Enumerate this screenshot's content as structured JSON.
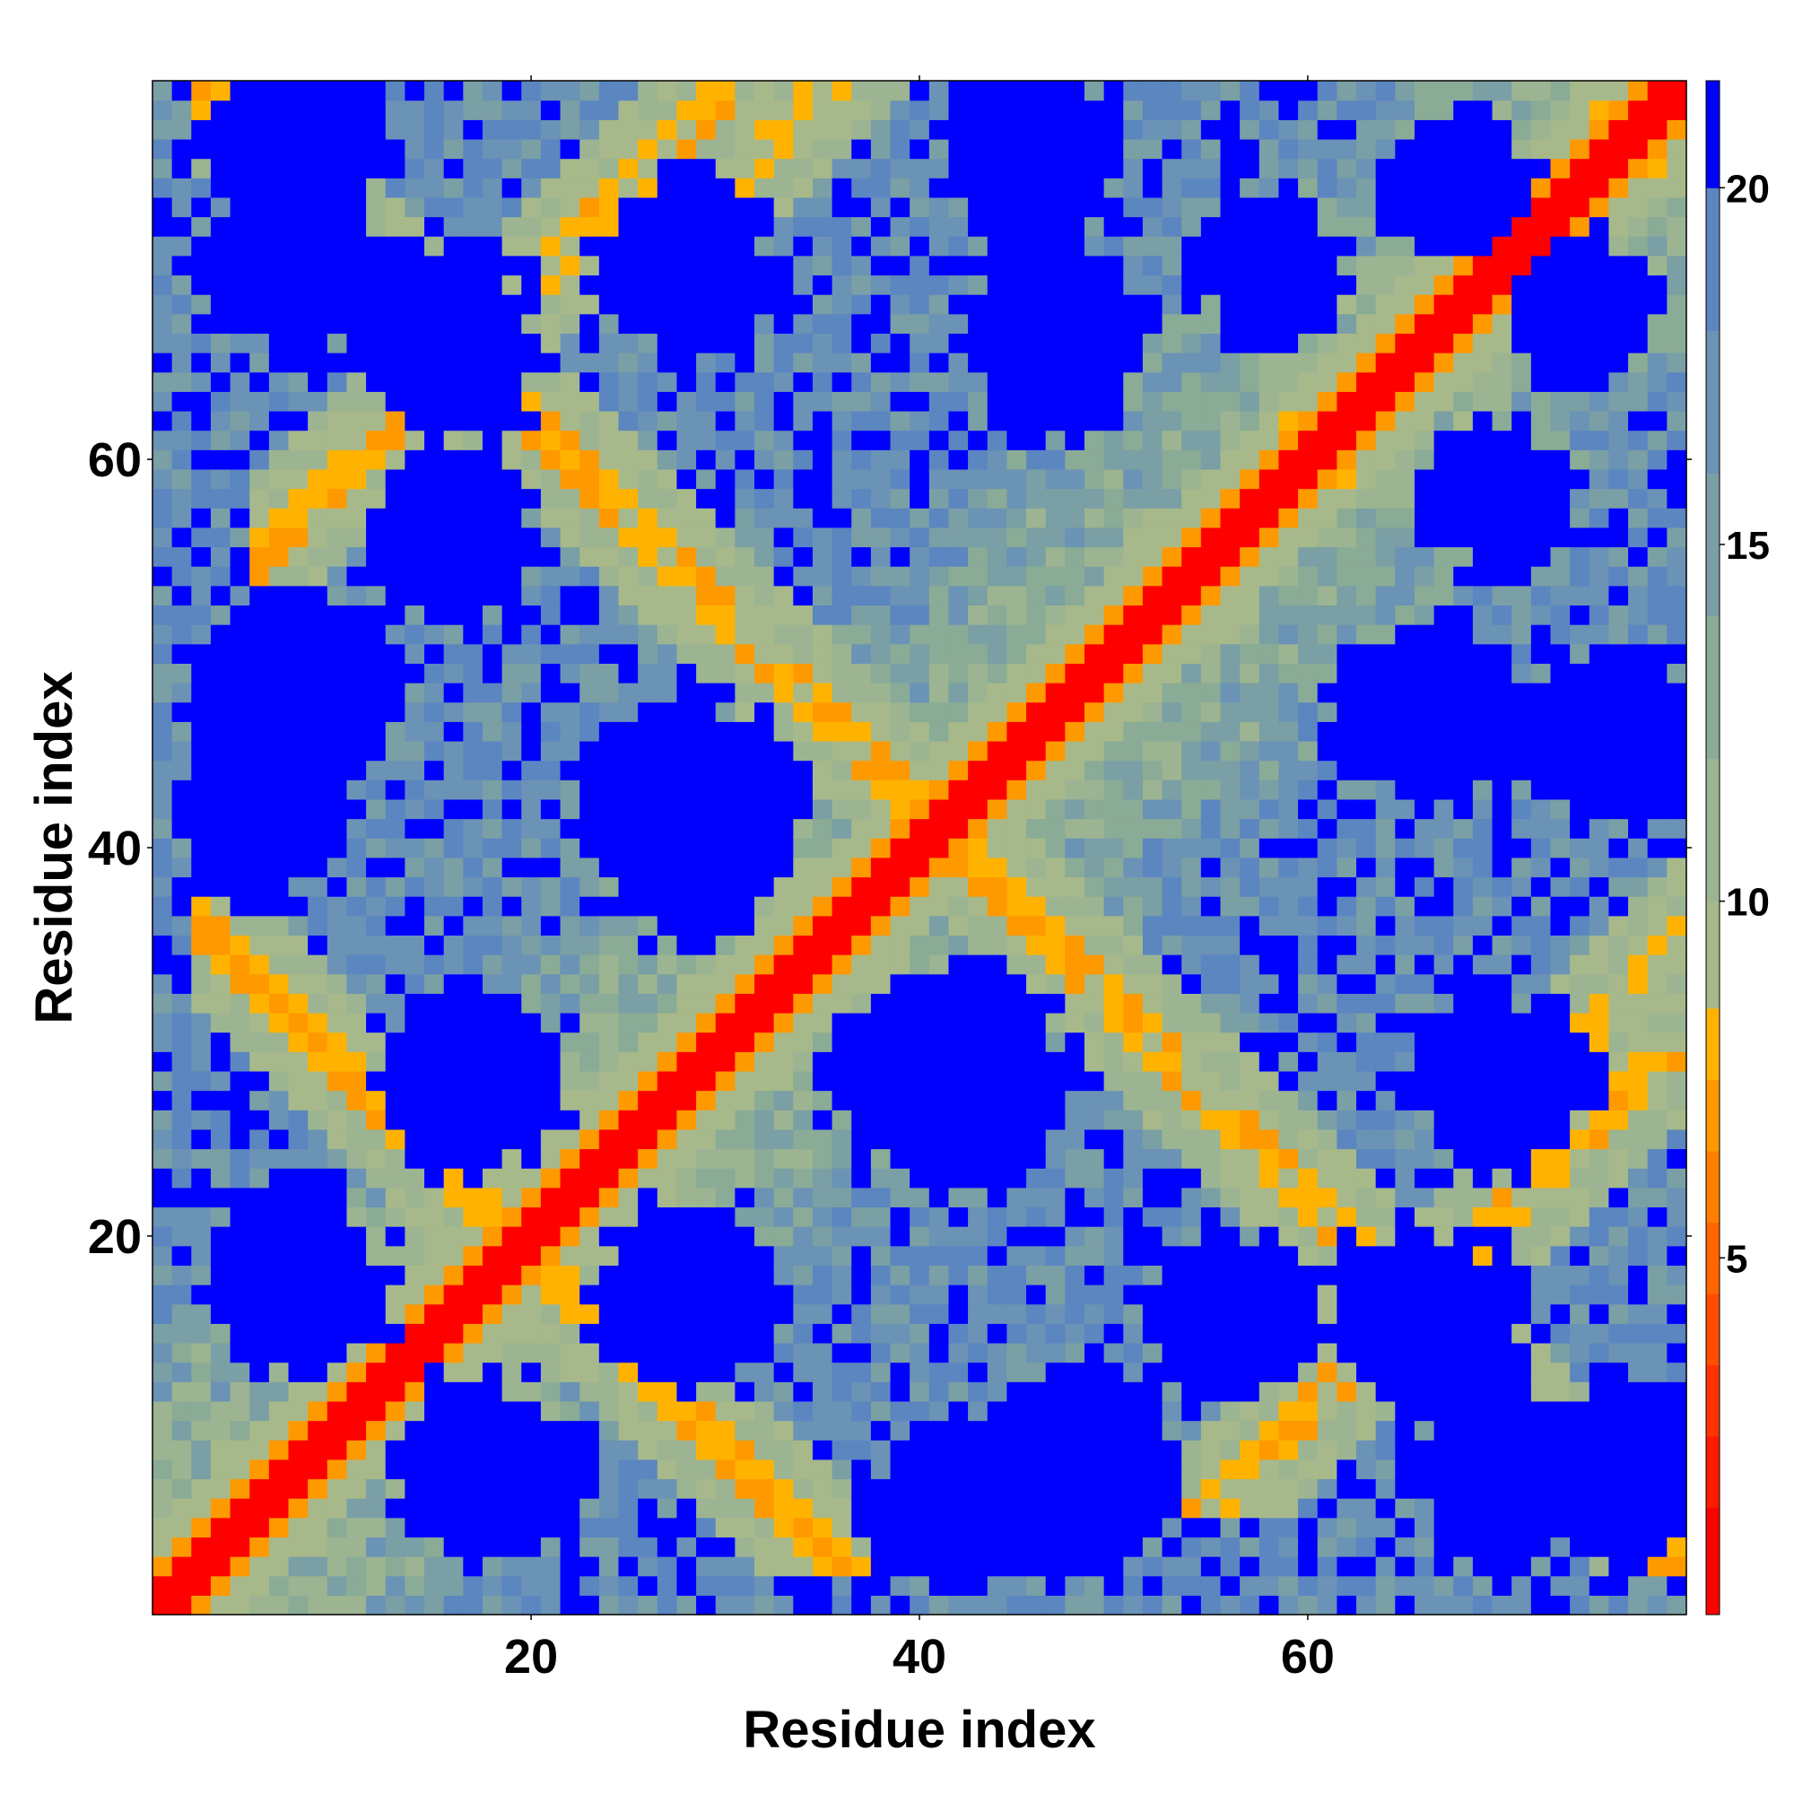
{
  "chart_data": {
    "type": "heatmap",
    "title": "",
    "xlabel": "Residue index",
    "ylabel": "Residue index",
    "grid_size": 79,
    "xlim": [
      1,
      79
    ],
    "ylim": [
      1,
      79
    ],
    "x_ticks": [
      {
        "value": 20,
        "label": "20"
      },
      {
        "value": 40,
        "label": "40"
      },
      {
        "value": 60,
        "label": "60"
      }
    ],
    "y_ticks": [
      {
        "value": 20,
        "label": "20"
      },
      {
        "value": 40,
        "label": "40"
      },
      {
        "value": 60,
        "label": "60"
      }
    ],
    "colorbar": {
      "range": [
        0,
        21.5
      ],
      "ticks": [
        {
          "value": 5,
          "label": "5"
        },
        {
          "value": 10,
          "label": "10"
        },
        {
          "value": 15,
          "label": "15"
        },
        {
          "value": 20,
          "label": "20"
        }
      ],
      "bands": [
        {
          "from": 0,
          "to": 1.5,
          "color": "#ff0000"
        },
        {
          "from": 1.5,
          "to": 2.5,
          "color": "#ff1a00"
        },
        {
          "from": 2.5,
          "to": 3.5,
          "color": "#ff3300"
        },
        {
          "from": 3.5,
          "to": 4.5,
          "color": "#ff4d00"
        },
        {
          "from": 4.5,
          "to": 5.5,
          "color": "#ff6600"
        },
        {
          "from": 5.5,
          "to": 6.5,
          "color": "#ff8000"
        },
        {
          "from": 6.5,
          "to": 7.5,
          "color": "#ff9900"
        },
        {
          "from": 7.5,
          "to": 8.5,
          "color": "#ffb300"
        },
        {
          "from": 8.5,
          "to": 10,
          "color": "#a7b98a"
        },
        {
          "from": 10,
          "to": 12,
          "color": "#9cb491"
        },
        {
          "from": 12,
          "to": 14,
          "color": "#8aab96"
        },
        {
          "from": 14,
          "to": 16,
          "color": "#7a9fa5"
        },
        {
          "from": 16,
          "to": 18,
          "color": "#6a93b5"
        },
        {
          "from": 18,
          "to": 20,
          "color": "#5b86c0"
        },
        {
          "from": 20,
          "to": 21.5,
          "color": "#0000ff"
        }
      ]
    },
    "matrix_model": {
      "symmetric": true,
      "description_of_structure": "Pairwise residue distance map: main diagonal near 0; antidiagonal contact bands near i+j≈39 (i=2..30) and i+j≈82 (i=2..77); parallel band j−i≈50 region; saturated blue (>=20) far-contact regions",
      "diagonal": {
        "width": 1.5,
        "value": 1
      },
      "bands": [
        {
          "type": "anti",
          "sum": 39,
          "from": 3,
          "to": 28,
          "width": 1.3,
          "value": 6.5
        },
        {
          "type": "anti",
          "sum": 82,
          "from": 3,
          "to": 79,
          "width": 1.4,
          "value": 6.8
        },
        {
          "type": "par",
          "offset": 49,
          "from": 6,
          "to": 30,
          "width": 1.2,
          "value": 7
        },
        {
          "type": "par",
          "offset": 44,
          "from": 30,
          "to": 46,
          "width": 1.2,
          "value": 7.4
        }
      ],
      "blobs": [
        {
          "i": 8,
          "j": 70,
          "r": 5,
          "value": 21
        },
        {
          "i": 8,
          "j": 48,
          "r": 6,
          "value": 21
        },
        {
          "i": 8,
          "j": 18,
          "r": 5,
          "value": 21
        },
        {
          "i": 18,
          "j": 8,
          "r": 4,
          "value": 21
        },
        {
          "i": 28,
          "j": 17,
          "r": 5,
          "value": 21
        },
        {
          "i": 28,
          "j": 42,
          "r": 6,
          "value": 21
        },
        {
          "i": 16,
          "j": 68,
          "r": 4,
          "value": 21
        },
        {
          "i": 28,
          "j": 70,
          "r": 5,
          "value": 21
        },
        {
          "i": 40,
          "j": 28,
          "r": 5,
          "value": 21
        },
        {
          "i": 42,
          "j": 6,
          "r": 5,
          "value": 21
        },
        {
          "i": 46,
          "j": 68,
          "r": 4,
          "value": 21
        },
        {
          "i": 56,
          "j": 16,
          "r": 5,
          "value": 21
        },
        {
          "i": 58,
          "j": 70,
          "r": 4,
          "value": 21
        },
        {
          "i": 66,
          "j": 47,
          "r": 5,
          "value": 21
        },
        {
          "i": 66,
          "j": 16,
          "r": 5,
          "value": 21
        },
        {
          "i": 70,
          "j": 6,
          "r": 4,
          "value": 21
        },
        {
          "i": 70,
          "j": 28,
          "r": 5,
          "value": 21
        },
        {
          "i": 74,
          "j": 68,
          "r": 4,
          "value": 21
        },
        {
          "i": 76,
          "j": 46,
          "r": 5,
          "value": 21
        },
        {
          "i": 76,
          "j": 8,
          "r": 5,
          "value": 21
        }
      ]
    }
  }
}
